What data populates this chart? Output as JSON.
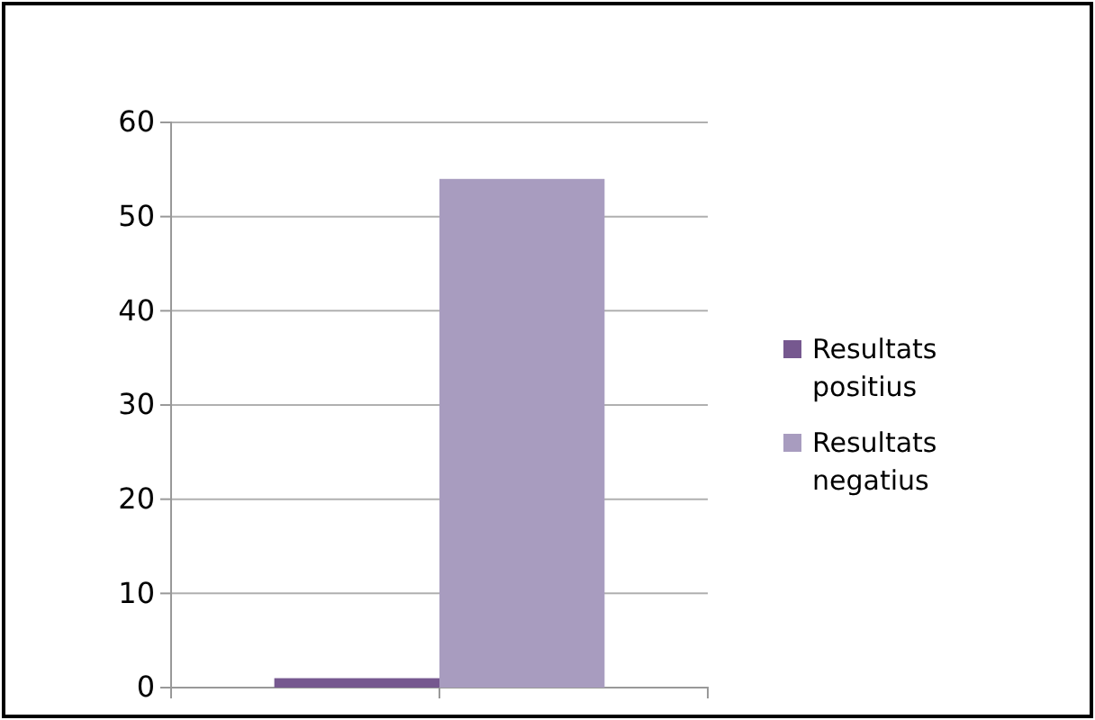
{
  "chart_data": {
    "type": "bar",
    "categories": [
      null
    ],
    "series": [
      {
        "name": "Resultats positius",
        "color": "#76588f",
        "values": [
          1
        ]
      },
      {
        "name": "Resultats negatius",
        "color": "#a89cbf",
        "values": [
          54
        ]
      }
    ],
    "ylim": [
      0,
      60
    ],
    "yticks": [
      0,
      10,
      20,
      30,
      40,
      50,
      60
    ],
    "grid": "y",
    "legend": "right"
  }
}
